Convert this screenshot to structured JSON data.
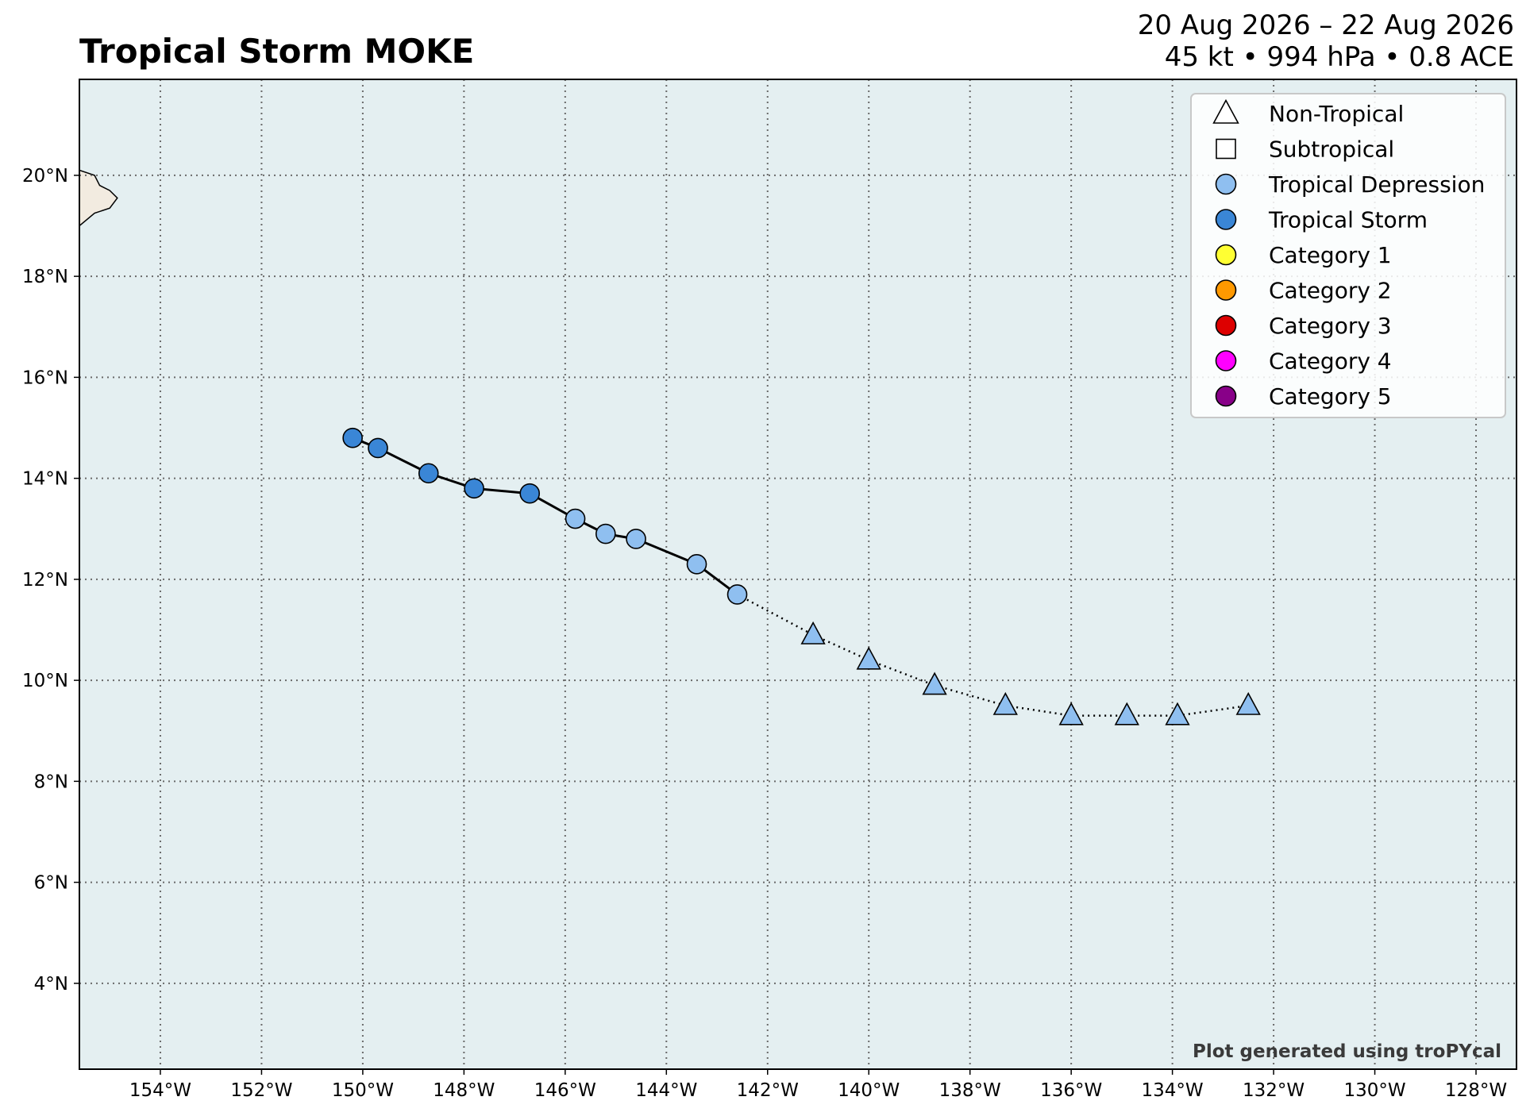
{
  "title": "Tropical Storm MOKE",
  "subtitle_dates": "20 Aug 2026 – 22 Aug 2026",
  "subtitle_stats": "45 kt • 994 hPa • 0.8 ACE",
  "credit": "Plot generated using troPYcal",
  "colors": {
    "ocean": "#e4eff1",
    "land": "#f2ebe0",
    "track": "#000000",
    "tropical_depression": "#8fbff0",
    "tropical_storm": "#3a86d6",
    "category_1": "#ffff33",
    "category_2": "#ff9900",
    "category_3": "#dd0000",
    "category_4": "#ff00ff",
    "category_5": "#880088"
  },
  "legend": [
    {
      "label": "Non-Tropical",
      "marker": "triangle-icon",
      "color": "#ffffff"
    },
    {
      "label": "Subtropical",
      "marker": "square-icon",
      "color": "#ffffff"
    },
    {
      "label": "Tropical Depression",
      "marker": "circle-icon",
      "color": "#8fbff0"
    },
    {
      "label": "Tropical Storm",
      "marker": "circle-icon",
      "color": "#3a86d6"
    },
    {
      "label": "Category 1",
      "marker": "circle-icon",
      "color": "#ffff33"
    },
    {
      "label": "Category 2",
      "marker": "circle-icon",
      "color": "#ff9900"
    },
    {
      "label": "Category 3",
      "marker": "circle-icon",
      "color": "#dd0000"
    },
    {
      "label": "Category 4",
      "marker": "circle-icon",
      "color": "#ff00ff"
    },
    {
      "label": "Category 5",
      "marker": "circle-icon",
      "color": "#880088"
    }
  ],
  "map": {
    "lon_range": [
      -155.6,
      -127.2
    ],
    "lat_range": [
      2.3,
      21.9
    ],
    "lon_ticks": [
      -154,
      -152,
      -150,
      -148,
      -146,
      -144,
      -142,
      -140,
      -138,
      -136,
      -134,
      -132,
      -130,
      -128
    ],
    "lon_tick_labels": [
      "154°W",
      "152°W",
      "150°W",
      "148°W",
      "146°W",
      "144°W",
      "142°W",
      "140°W",
      "138°W",
      "136°W",
      "134°W",
      "132°W",
      "130°W",
      "128°W"
    ],
    "lat_ticks": [
      4,
      6,
      8,
      10,
      12,
      14,
      16,
      18,
      20
    ],
    "lat_tick_labels": [
      "4°N",
      "6°N",
      "8°N",
      "10°N",
      "12°N",
      "14°N",
      "16°N",
      "18°N",
      "20°N"
    ],
    "grid": "dotted",
    "legend_position": "top-right"
  },
  "track": [
    {
      "lon": -150.2,
      "lat": 14.8,
      "type": "Tropical Storm"
    },
    {
      "lon": -149.7,
      "lat": 14.6,
      "type": "Tropical Storm"
    },
    {
      "lon": -148.7,
      "lat": 14.1,
      "type": "Tropical Storm"
    },
    {
      "lon": -147.8,
      "lat": 13.8,
      "type": "Tropical Storm"
    },
    {
      "lon": -146.7,
      "lat": 13.7,
      "type": "Tropical Storm"
    },
    {
      "lon": -145.8,
      "lat": 13.2,
      "type": "Tropical Depression"
    },
    {
      "lon": -145.2,
      "lat": 12.9,
      "type": "Tropical Depression"
    },
    {
      "lon": -144.6,
      "lat": 12.8,
      "type": "Tropical Depression"
    },
    {
      "lon": -143.4,
      "lat": 12.3,
      "type": "Tropical Depression"
    },
    {
      "lon": -142.6,
      "lat": 11.7,
      "type": "Tropical Depression"
    },
    {
      "lon": -141.1,
      "lat": 10.9,
      "type": "Non-Tropical"
    },
    {
      "lon": -140.0,
      "lat": 10.4,
      "type": "Non-Tropical"
    },
    {
      "lon": -138.7,
      "lat": 9.9,
      "type": "Non-Tropical"
    },
    {
      "lon": -137.3,
      "lat": 9.5,
      "type": "Non-Tropical"
    },
    {
      "lon": -136.0,
      "lat": 9.3,
      "type": "Non-Tropical"
    },
    {
      "lon": -134.9,
      "lat": 9.3,
      "type": "Non-Tropical"
    },
    {
      "lon": -133.9,
      "lat": 9.3,
      "type": "Non-Tropical"
    },
    {
      "lon": -132.5,
      "lat": 9.5,
      "type": "Non-Tropical"
    }
  ],
  "land": [
    {
      "name": "Hawaii Island",
      "outline": [
        [
          -155.6,
          20.1
        ],
        [
          -155.3,
          20.0
        ],
        [
          -155.2,
          19.8
        ],
        [
          -155.0,
          19.7
        ],
        [
          -154.85,
          19.55
        ],
        [
          -155.0,
          19.35
        ],
        [
          -155.3,
          19.25
        ],
        [
          -155.6,
          19.0
        ]
      ]
    }
  ]
}
